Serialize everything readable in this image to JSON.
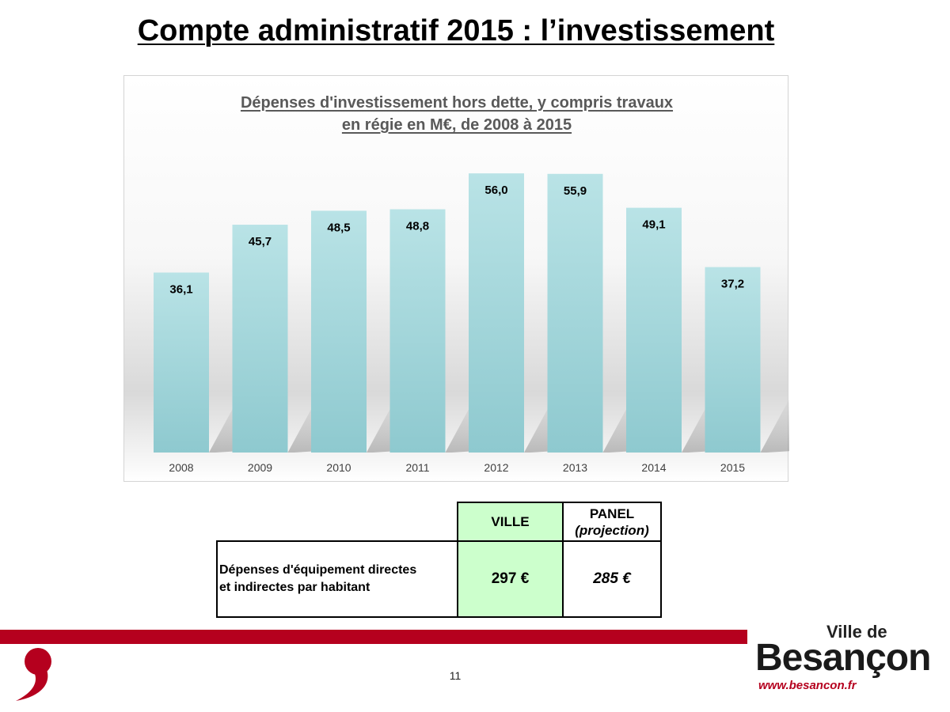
{
  "slide": {
    "title": "Compte administratif 2015 : l’investissement",
    "page_number": "11"
  },
  "chart_data": {
    "type": "bar",
    "title_line1": "Dépenses d'investissement hors dette, y compris travaux",
    "title_line2": "en régie en M€, de 2008 à 2015",
    "categories": [
      "2008",
      "2009",
      "2010",
      "2011",
      "2012",
      "2013",
      "2014",
      "2015"
    ],
    "values": [
      36.1,
      45.7,
      48.5,
      48.8,
      56.0,
      55.9,
      49.1,
      37.2
    ],
    "value_labels": [
      "36,1",
      "45,7",
      "48,5",
      "48,8",
      "56,0",
      "55,9",
      "49,1",
      "37,2"
    ],
    "ylim": [
      0,
      56.5
    ],
    "grid": false,
    "legend": "none",
    "bar_color_top": "#b9e3e6",
    "bar_color_bottom": "#8ec9cf"
  },
  "table": {
    "header_ville": "VILLE",
    "header_panel": "PANEL",
    "header_panel_sub": "(projection)",
    "row_label_line1": "Dépenses d'équipement directes",
    "row_label_line2": "et indirectes par habitant",
    "value_ville": "297 €",
    "value_panel": "285 €",
    "ville_color": "#ccffcc"
  },
  "footer": {
    "band_color": "#b5001e",
    "logo_ville": "Ville de",
    "logo_city": "Besançon",
    "logo_url": "www.besancon.fr"
  }
}
